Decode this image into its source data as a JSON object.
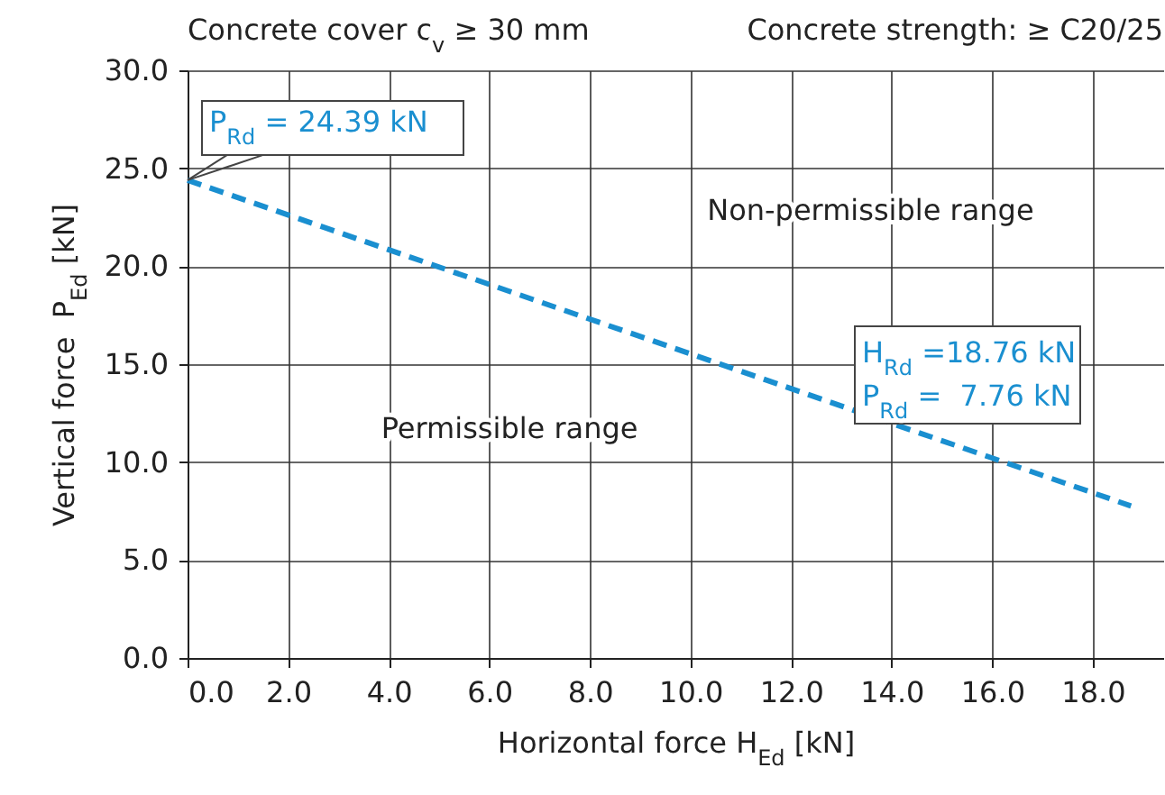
{
  "chart_data": {
    "type": "line",
    "xlabel": "Horizontal force H$_{Ed}$ [kN]",
    "ylabel": "Vertical force  P$_{Ed}$ [kN]",
    "x": [
      0,
      18.76
    ],
    "series": [
      {
        "color": "#1a8fd0",
        "values": [
          24.39,
          7.76
        ]
      }
    ],
    "line_style": "dashed",
    "marker": "none",
    "grid": true,
    "xlim": [
      0,
      19.4
    ],
    "ylim": [
      0,
      30
    ],
    "xticks": [
      {
        "value": 0,
        "label": "0.0"
      },
      {
        "value": 2,
        "label": "2.0"
      },
      {
        "value": 4,
        "label": "4.0"
      },
      {
        "value": 6,
        "label": "6.0"
      },
      {
        "value": 8,
        "label": "8.0"
      },
      {
        "value": 10,
        "label": "10.0"
      },
      {
        "value": 12,
        "label": "12.0"
      },
      {
        "value": 14,
        "label": "14.0"
      },
      {
        "value": 16,
        "label": "16.0"
      },
      {
        "value": 18,
        "label": "18.0"
      }
    ],
    "yticks": [
      {
        "value": 0,
        "label": "0.0"
      },
      {
        "value": 5,
        "label": "5.0"
      },
      {
        "value": 10,
        "label": "10.0"
      },
      {
        "value": 15,
        "label": "15.0"
      },
      {
        "value": 20,
        "label": "20.0"
      },
      {
        "value": 25,
        "label": "25.0"
      },
      {
        "value": 30,
        "label": "30.0"
      }
    ],
    "annotations": [
      "Concrete cover c$_{v}$ ≥ 30 mm",
      "Concrete strength: ≥ C20/25",
      "Non-permissible range",
      "Permissible range",
      {
        "text": "P$_{Rd}$ = 24.39 kN",
        "x": 0,
        "y": 24.39
      },
      "H$_{Rd}$ =18.76 kN",
      "P$_{Rd}$ =  7.76 kN"
    ]
  }
}
